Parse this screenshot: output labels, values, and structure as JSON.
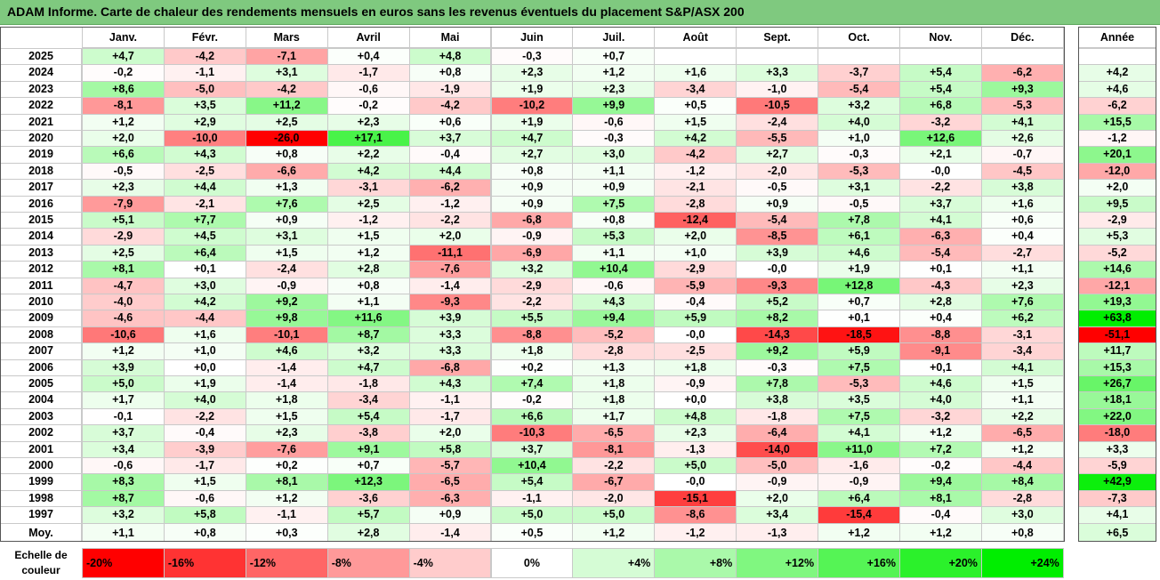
{
  "title": "ADAM Informe. Carte de chaleur des rendements mensuels en euros sans les revenus éventuels du placement S&P/ASX 200",
  "chart_data": {
    "type": "heatmap",
    "months": [
      "Janv.",
      "Févr.",
      "Mars",
      "Avril",
      "Mai",
      "Juin",
      "Juil.",
      "Août",
      "Sept.",
      "Oct.",
      "Nov.",
      "Déc."
    ],
    "annual_header": "Année",
    "average_label": "Moy.",
    "years": [
      "2025",
      "2024",
      "2023",
      "2022",
      "2021",
      "2020",
      "2019",
      "2018",
      "2017",
      "2016",
      "2015",
      "2014",
      "2013",
      "2012",
      "2011",
      "2010",
      "2009",
      "2008",
      "2007",
      "2006",
      "2005",
      "2004",
      "2003",
      "2002",
      "2001",
      "2000",
      "1999",
      "1998",
      "1997"
    ],
    "values": [
      [
        4.7,
        -4.2,
        -7.1,
        0.4,
        4.8,
        -0.3,
        0.7,
        null,
        null,
        null,
        null,
        null
      ],
      [
        -0.2,
        -1.1,
        3.1,
        -1.7,
        0.8,
        2.3,
        1.2,
        1.6,
        3.3,
        -3.7,
        5.4,
        -6.2
      ],
      [
        8.6,
        -5.0,
        -4.2,
        -0.6,
        -1.9,
        1.9,
        2.3,
        -3.4,
        -1.0,
        -5.4,
        5.4,
        9.3
      ],
      [
        -8.1,
        3.5,
        11.2,
        -0.2,
        -4.2,
        -10.2,
        9.9,
        0.5,
        -10.5,
        3.2,
        6.8,
        -5.3
      ],
      [
        1.2,
        2.9,
        2.5,
        2.3,
        0.6,
        1.9,
        -0.6,
        1.5,
        -2.4,
        4.0,
        -3.2,
        4.1
      ],
      [
        2.0,
        -10.0,
        -26.0,
        17.1,
        3.7,
        4.7,
        -0.3,
        4.2,
        -5.5,
        1.0,
        12.6,
        2.6
      ],
      [
        6.6,
        4.3,
        0.8,
        2.2,
        -0.4,
        2.7,
        3.0,
        -4.2,
        2.7,
        -0.3,
        2.1,
        -0.7
      ],
      [
        -0.5,
        -2.5,
        -6.6,
        4.2,
        4.4,
        0.8,
        1.1,
        -1.2,
        -2.0,
        -5.3,
        -0.0,
        -4.5
      ],
      [
        2.3,
        4.4,
        1.3,
        -3.1,
        -6.2,
        0.9,
        0.9,
        -2.1,
        -0.5,
        3.1,
        -2.2,
        3.8
      ],
      [
        -7.9,
        -2.1,
        7.6,
        2.5,
        -1.2,
        0.9,
        7.5,
        -2.8,
        0.9,
        -0.5,
        3.7,
        1.6
      ],
      [
        5.1,
        7.7,
        0.9,
        -1.2,
        -2.2,
        -6.8,
        0.8,
        -12.4,
        -5.4,
        7.8,
        4.1,
        0.6
      ],
      [
        -2.9,
        4.5,
        3.1,
        1.5,
        2.0,
        -0.9,
        5.3,
        2.0,
        -8.5,
        6.1,
        -6.3,
        0.4
      ],
      [
        2.5,
        6.4,
        1.5,
        1.2,
        -11.1,
        -6.9,
        1.1,
        1.0,
        3.9,
        4.6,
        -5.4,
        -2.7
      ],
      [
        8.1,
        0.1,
        -2.4,
        2.8,
        -7.6,
        3.2,
        10.4,
        -2.9,
        -0.0,
        1.9,
        0.1,
        1.1
      ],
      [
        -4.7,
        3.0,
        -0.9,
        0.8,
        -1.4,
        -2.9,
        -0.6,
        -5.9,
        -9.3,
        12.8,
        -4.3,
        2.3
      ],
      [
        -4.0,
        4.2,
        9.2,
        1.1,
        -9.3,
        -2.2,
        4.3,
        -0.4,
        5.2,
        0.7,
        2.8,
        7.6
      ],
      [
        -4.6,
        -4.4,
        9.8,
        11.6,
        3.9,
        5.5,
        9.4,
        5.9,
        8.2,
        0.1,
        0.4,
        6.2
      ],
      [
        -10.6,
        1.6,
        -10.1,
        8.7,
        3.3,
        -8.8,
        -5.2,
        -0.0,
        -14.3,
        -18.5,
        -8.8,
        -3.1
      ],
      [
        1.2,
        1.0,
        4.6,
        3.2,
        3.3,
        1.8,
        -2.8,
        -2.5,
        9.2,
        5.9,
        -9.1,
        -3.4
      ],
      [
        3.9,
        0.0,
        -1.4,
        4.7,
        -6.8,
        0.2,
        1.3,
        1.8,
        -0.3,
        7.5,
        0.1,
        4.1
      ],
      [
        5.0,
        1.9,
        -1.4,
        -1.8,
        4.3,
        7.4,
        1.8,
        -0.9,
        7.8,
        -5.3,
        4.6,
        1.5
      ],
      [
        1.7,
        4.0,
        1.8,
        -3.4,
        -1.1,
        -0.2,
        1.8,
        0.0,
        3.8,
        3.5,
        4.0,
        1.1
      ],
      [
        -0.1,
        -2.2,
        1.5,
        5.4,
        -1.7,
        6.6,
        1.7,
        4.8,
        -1.8,
        7.5,
        -3.2,
        2.2
      ],
      [
        3.7,
        -0.4,
        2.3,
        -3.8,
        2.0,
        -10.3,
        -6.5,
        2.3,
        -6.4,
        4.1,
        1.2,
        -6.5
      ],
      [
        3.4,
        -3.9,
        -7.6,
        9.1,
        5.8,
        3.7,
        -8.1,
        -1.3,
        -14.0,
        11.0,
        7.2,
        1.2
      ],
      [
        -0.6,
        -1.7,
        0.2,
        0.7,
        -5.7,
        10.4,
        -2.2,
        5.0,
        -5.0,
        -1.6,
        -0.2,
        -4.4
      ],
      [
        8.3,
        1.5,
        8.1,
        12.3,
        -6.5,
        5.4,
        -6.7,
        -0.0,
        -0.9,
        -0.9,
        9.4,
        8.4
      ],
      [
        8.7,
        -0.6,
        1.2,
        -3.6,
        -6.3,
        -1.1,
        -2.0,
        -15.1,
        2.0,
        6.4,
        8.1,
        -2.8
      ],
      [
        3.2,
        5.8,
        -1.1,
        5.7,
        0.9,
        5.0,
        5.0,
        -8.6,
        3.4,
        -15.4,
        -0.4,
        3.0
      ]
    ],
    "annual": [
      null,
      4.2,
      4.6,
      -6.2,
      15.5,
      -1.2,
      20.1,
      -12.0,
      2.0,
      9.5,
      -2.9,
      5.3,
      -5.2,
      14.6,
      -12.1,
      19.3,
      63.8,
      -51.1,
      11.7,
      15.3,
      26.7,
      18.1,
      22.0,
      -18.0,
      3.3,
      -5.9,
      42.9,
      -7.3,
      4.1
    ],
    "average": [
      1.1,
      0.8,
      0.3,
      2.8,
      -1.4,
      0.5,
      1.2,
      -1.2,
      -1.3,
      1.2,
      1.2,
      0.8
    ],
    "average_annual": 6.5,
    "scale_label": "Echelle de\ncouleur",
    "scale": [
      "-20%",
      "-16%",
      "-12%",
      "-8%",
      "-4%",
      "0%",
      "+4%",
      "+8%",
      "+12%",
      "+16%",
      "+20%",
      "+24%"
    ],
    "scale_values": [
      -20,
      -16,
      -12,
      -8,
      -4,
      0,
      4,
      8,
      12,
      16,
      20,
      24
    ],
    "colors": {
      "negative": "#ff0000",
      "zero": "#ffffff",
      "positive": "#00ee00",
      "title_bar": "#7fc97f"
    }
  }
}
